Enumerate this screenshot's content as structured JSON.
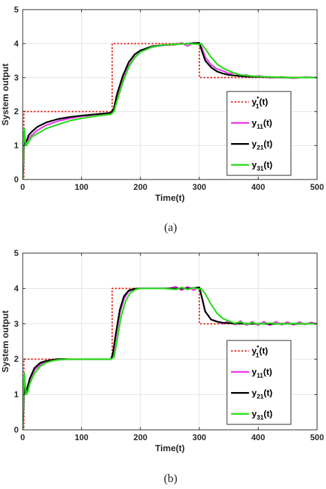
{
  "chart_data": [
    {
      "type": "line",
      "caption": "(a)",
      "xlabel": "Time(t)",
      "ylabel": "System output",
      "xlim": [
        0,
        500
      ],
      "ylim": [
        0,
        5
      ],
      "xticks": [
        0,
        100,
        200,
        300,
        400,
        500
      ],
      "yticks": [
        0,
        1,
        2,
        3,
        4,
        5
      ],
      "grid": true,
      "legend_position": "bottom-right",
      "series": [
        {
          "key": "ref",
          "legend": {
            "base": "y",
            "sub": "1",
            "sup": "*",
            "suffix": "(t)"
          },
          "color": "#e8261c",
          "style": "dotted",
          "x": [
            0,
            2,
            2,
            152,
            152,
            300,
            300,
            500
          ],
          "y": [
            0,
            0,
            2,
            2,
            4,
            4,
            3,
            3
          ]
        },
        {
          "key": "y11",
          "legend": {
            "base": "y",
            "sub": "11",
            "sup": "",
            "suffix": "(t)"
          },
          "color": "#e83ce6",
          "style": "solid",
          "x": [
            0,
            1,
            2,
            3,
            4,
            6,
            8,
            10,
            15,
            25,
            40,
            60,
            80,
            100,
            130,
            150,
            155,
            160,
            170,
            180,
            190,
            200,
            220,
            240,
            260,
            270,
            280,
            290,
            300,
            305,
            310,
            320,
            330,
            340,
            350,
            360,
            370,
            380,
            390,
            400,
            420,
            440,
            460,
            480,
            500
          ],
          "y": [
            0,
            0.4,
            1.2,
            1.35,
            1.15,
            1.1,
            1.15,
            1.2,
            1.3,
            1.45,
            1.6,
            1.72,
            1.8,
            1.86,
            1.92,
            1.95,
            2.05,
            2.4,
            2.95,
            3.35,
            3.6,
            3.75,
            3.9,
            3.95,
            3.97,
            4.02,
            3.93,
            4.02,
            4.0,
            3.85,
            3.6,
            3.38,
            3.25,
            3.2,
            3.12,
            3.13,
            3.05,
            3.08,
            3.02,
            3.05,
            3.0,
            3.02,
            2.98,
            3.01,
            3.0
          ]
        },
        {
          "key": "y21",
          "legend": {
            "base": "y",
            "sub": "21",
            "sup": "",
            "suffix": "(t)"
          },
          "color": "#000000",
          "style": "solid",
          "x": [
            0,
            1,
            2,
            3,
            4,
            6,
            8,
            10,
            15,
            25,
            40,
            60,
            80,
            100,
            130,
            150,
            155,
            160,
            170,
            180,
            190,
            200,
            220,
            240,
            260,
            280,
            300,
            305,
            310,
            320,
            330,
            340,
            350,
            360,
            380,
            400,
            450,
            500
          ],
          "y": [
            0,
            0.3,
            1.0,
            1.1,
            1.05,
            1.1,
            1.2,
            1.3,
            1.4,
            1.55,
            1.68,
            1.78,
            1.84,
            1.88,
            1.93,
            1.96,
            2.1,
            2.5,
            3.05,
            3.45,
            3.68,
            3.8,
            3.92,
            3.96,
            3.98,
            4.0,
            4.02,
            3.75,
            3.5,
            3.3,
            3.18,
            3.12,
            3.08,
            3.06,
            3.03,
            3.02,
            3.0,
            3.0
          ]
        },
        {
          "key": "y31",
          "legend": {
            "base": "y",
            "sub": "31",
            "sup": "",
            "suffix": "(t)"
          },
          "color": "#2edb1f",
          "style": "solid",
          "x": [
            0,
            1,
            2,
            3,
            4,
            6,
            8,
            10,
            15,
            25,
            40,
            60,
            80,
            100,
            130,
            150,
            155,
            160,
            170,
            180,
            190,
            200,
            220,
            240,
            260,
            280,
            300,
            303,
            310,
            320,
            330,
            340,
            350,
            360,
            370,
            380,
            400,
            420,
            440,
            460,
            480,
            500
          ],
          "y": [
            0,
            0.5,
            1.4,
            1.5,
            1.2,
            1.0,
            1.05,
            1.1,
            1.25,
            1.35,
            1.5,
            1.62,
            1.73,
            1.8,
            1.88,
            1.92,
            2.0,
            2.3,
            2.85,
            3.3,
            3.58,
            3.75,
            3.9,
            3.96,
            3.98,
            4.0,
            3.98,
            4.0,
            3.85,
            3.6,
            3.4,
            3.28,
            3.2,
            3.13,
            3.08,
            3.06,
            3.03,
            3.02,
            3.01,
            3.0,
            3.0,
            3.0
          ]
        }
      ]
    },
    {
      "type": "line",
      "caption": "(b)",
      "xlabel": "Time(t)",
      "ylabel": "System output",
      "xlim": [
        0,
        500
      ],
      "ylim": [
        0,
        5
      ],
      "xticks": [
        0,
        100,
        200,
        300,
        400,
        500
      ],
      "yticks": [
        0,
        1,
        2,
        3,
        4,
        5
      ],
      "grid": true,
      "legend_position": "bottom-right",
      "series": [
        {
          "key": "ref",
          "legend": {
            "base": "y",
            "sub": "1",
            "sup": "*",
            "suffix": "(t)"
          },
          "color": "#e8261c",
          "style": "dotted",
          "x": [
            0,
            2,
            2,
            152,
            152,
            300,
            300,
            500
          ],
          "y": [
            0,
            0,
            2,
            2,
            4,
            4,
            3,
            3
          ]
        },
        {
          "key": "y11",
          "legend": {
            "base": "y",
            "sub": "11",
            "sup": "",
            "suffix": "(t)"
          },
          "color": "#e83ce6",
          "style": "solid",
          "x": [
            0,
            1,
            2,
            3,
            4,
            6,
            8,
            12,
            20,
            30,
            40,
            50,
            60,
            80,
            100,
            150,
            153,
            158,
            165,
            172,
            180,
            190,
            200,
            230,
            250,
            260,
            270,
            280,
            290,
            300,
            305,
            310,
            320,
            330,
            340,
            350,
            360,
            370,
            380,
            390,
            400,
            410,
            420,
            430,
            440,
            450,
            460,
            470,
            480,
            490,
            500
          ],
          "y": [
            0,
            0.6,
            1.2,
            1.5,
            1.3,
            1.1,
            1.15,
            1.4,
            1.7,
            1.85,
            1.93,
            1.97,
            1.99,
            2.0,
            2.0,
            2.0,
            2.1,
            2.6,
            3.3,
            3.7,
            3.92,
            3.98,
            4.0,
            4.0,
            4.0,
            4.05,
            3.95,
            4.05,
            3.95,
            4.03,
            3.7,
            3.35,
            3.12,
            3.07,
            3.0,
            3.08,
            2.98,
            3.08,
            2.96,
            3.06,
            2.96,
            3.06,
            2.96,
            3.06,
            2.97,
            3.05,
            2.97,
            3.05,
            2.98,
            3.04,
            3.0
          ]
        },
        {
          "key": "y21",
          "legend": {
            "base": "y",
            "sub": "21",
            "sup": "",
            "suffix": "(t)"
          },
          "color": "#000000",
          "style": "solid",
          "x": [
            0,
            1,
            2,
            3,
            4,
            6,
            8,
            12,
            20,
            30,
            40,
            50,
            60,
            80,
            100,
            150,
            153,
            158,
            165,
            172,
            180,
            190,
            200,
            250,
            280,
            300,
            305,
            310,
            320,
            330,
            340,
            360,
            400,
            450,
            500
          ],
          "y": [
            0,
            0.4,
            1.0,
            1.2,
            1.05,
            1.05,
            1.2,
            1.45,
            1.75,
            1.9,
            1.95,
            1.98,
            2.0,
            2.0,
            2.0,
            2.0,
            2.15,
            2.7,
            3.4,
            3.78,
            3.94,
            3.99,
            4.0,
            4.0,
            4.0,
            4.03,
            3.7,
            3.35,
            3.12,
            3.06,
            3.03,
            3.01,
            3.0,
            3.0,
            3.0
          ]
        },
        {
          "key": "y31",
          "legend": {
            "base": "y",
            "sub": "31",
            "sup": "",
            "suffix": "(t)"
          },
          "color": "#2edb1f",
          "style": "solid",
          "x": [
            0,
            1,
            2,
            3,
            4,
            6,
            8,
            12,
            20,
            30,
            40,
            50,
            60,
            80,
            100,
            150,
            155,
            160,
            167,
            175,
            183,
            192,
            200,
            240,
            260,
            270,
            280,
            290,
            300,
            303,
            310,
            320,
            330,
            340,
            350,
            360,
            370,
            380,
            390,
            400,
            420,
            440,
            460,
            480,
            500
          ],
          "y": [
            0,
            0.7,
            1.4,
            1.6,
            1.3,
            1.0,
            1.05,
            1.3,
            1.6,
            1.8,
            1.9,
            1.95,
            1.98,
            2.0,
            2.0,
            2.0,
            2.05,
            2.5,
            3.2,
            3.65,
            3.88,
            3.97,
            4.0,
            4.0,
            3.97,
            4.03,
            3.97,
            4.02,
            3.98,
            4.0,
            3.85,
            3.55,
            3.3,
            3.15,
            3.08,
            3.02,
            3.05,
            2.99,
            3.03,
            2.99,
            3.02,
            2.99,
            3.01,
            3.0,
            3.0
          ]
        }
      ]
    }
  ]
}
